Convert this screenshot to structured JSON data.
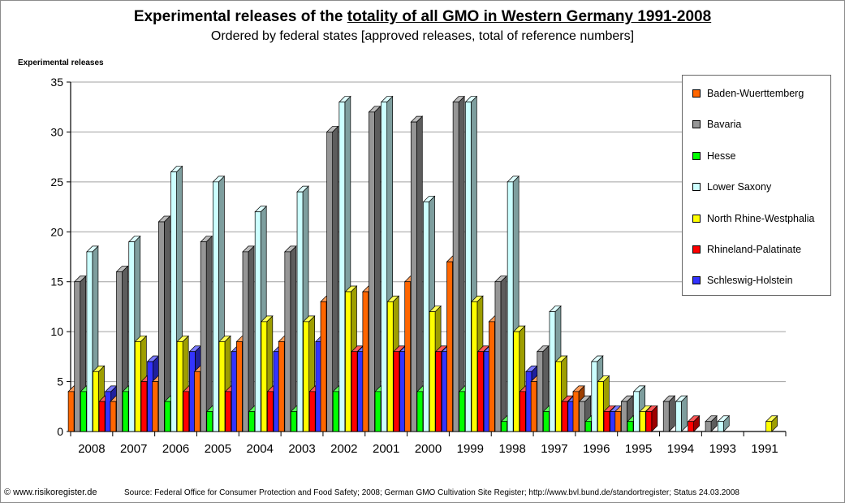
{
  "header": {
    "title_prefix": "Experimental releases of the ",
    "title_underlined": "totality of all GMO in Western Germany 1991-2008",
    "subtitle": "Ordered by federal states [approved releases, total of reference numbers]"
  },
  "footer": {
    "copyright": "© www.risikoregister.de",
    "source": "Source: Federal Office for Consumer Protection and Food Safety; 2008; German GMO Cultivation Site Register; http://www.bvl.bund.de/standortregister; Status 24.03.2008"
  },
  "chart_data": {
    "type": "bar",
    "title": "Experimental releases of the totality of all GMO in Western Germany 1991-2008",
    "subtitle": "Ordered by federal states [approved releases, total of reference numbers]",
    "ylabel": "Experimental releases",
    "xlabel": "",
    "ylim": [
      0,
      35
    ],
    "yticks": [
      "0",
      "5",
      "10",
      "15",
      "20",
      "25",
      "30",
      "35"
    ],
    "grid": true,
    "legend_position": "right",
    "categories": [
      "2008",
      "2007",
      "2006",
      "2005",
      "2004",
      "2003",
      "2002",
      "2001",
      "2000",
      "1999",
      "1998",
      "1997",
      "1996",
      "1995",
      "1994",
      "1993",
      "1991"
    ],
    "series": [
      {
        "name": "Baden-Wuerttemberg",
        "color": "#ff6600",
        "values": [
          4,
          3,
          5,
          6,
          9,
          9,
          13,
          14,
          15,
          17,
          11,
          5,
          4,
          2,
          0,
          0,
          0
        ]
      },
      {
        "name": "Bavaria",
        "color": "#969696",
        "values": [
          15,
          16,
          21,
          19,
          18,
          18,
          30,
          32,
          31,
          33,
          15,
          8,
          3,
          3,
          3,
          1,
          0
        ]
      },
      {
        "name": "Hesse",
        "color": "#00ff00",
        "values": [
          4,
          4,
          3,
          2,
          2,
          2,
          4,
          4,
          4,
          4,
          1,
          2,
          1,
          1,
          0,
          0,
          0
        ]
      },
      {
        "name": "Lower Saxony",
        "color": "#ccffff",
        "values": [
          18,
          19,
          26,
          25,
          22,
          24,
          33,
          33,
          23,
          33,
          25,
          12,
          7,
          4,
          3,
          1,
          0
        ]
      },
      {
        "name": "North Rhine-Westphalia",
        "color": "#ffff00",
        "values": [
          6,
          9,
          9,
          9,
          11,
          11,
          14,
          13,
          12,
          13,
          10,
          7,
          5,
          2,
          0,
          0,
          1
        ]
      },
      {
        "name": "Rhineland-Palatinate",
        "color": "#ff0000",
        "values": [
          3,
          5,
          4,
          4,
          4,
          4,
          8,
          8,
          8,
          8,
          4,
          3,
          2,
          2,
          1,
          0,
          0
        ]
      },
      {
        "name": "Schleswig-Holstein",
        "color": "#3333ff",
        "values": [
          4,
          7,
          8,
          8,
          8,
          9,
          8,
          8,
          8,
          8,
          6,
          3,
          2,
          0,
          0,
          0,
          0
        ]
      }
    ]
  }
}
